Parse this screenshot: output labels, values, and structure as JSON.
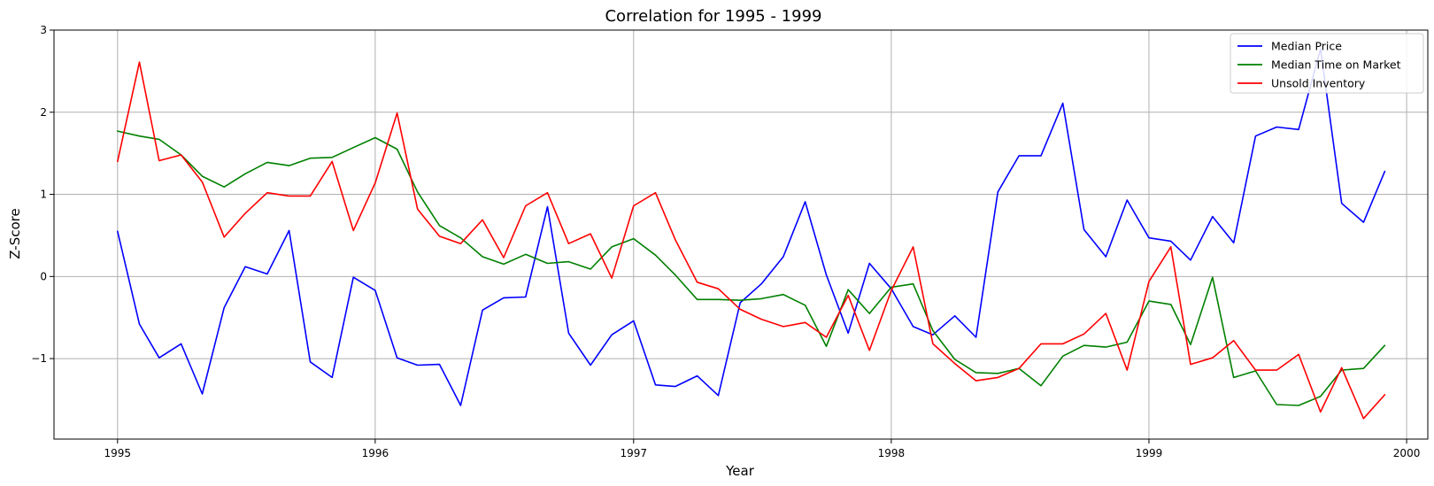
{
  "chart_data": {
    "type": "line",
    "title": "Correlation for 1995 - 1999",
    "xlabel": "Year",
    "ylabel": "Z-Score",
    "xlim": [
      "1994-10-03",
      "2000-01-31"
    ],
    "ylim": [
      -1.98,
      3.0
    ],
    "x_ticks": [
      "1995",
      "1996",
      "1997",
      "1998",
      "1999",
      "2000"
    ],
    "y_ticks": [
      "−1",
      "0",
      "1",
      "2",
      "3"
    ],
    "grid": true,
    "legend_position": "top-right",
    "x": [
      "1995-01",
      "1995-02",
      "1995-03",
      "1995-04",
      "1995-05",
      "1995-06",
      "1995-07",
      "1995-08",
      "1995-09",
      "1995-10",
      "1995-11",
      "1995-12",
      "1996-01",
      "1996-02",
      "1996-03",
      "1996-04",
      "1996-05",
      "1996-06",
      "1996-07",
      "1996-08",
      "1996-09",
      "1996-10",
      "1996-11",
      "1996-12",
      "1997-01",
      "1997-02",
      "1997-03",
      "1997-04",
      "1997-05",
      "1997-06",
      "1997-07",
      "1997-08",
      "1997-09",
      "1997-10",
      "1997-11",
      "1997-12",
      "1998-01",
      "1998-02",
      "1998-03",
      "1998-04",
      "1998-05",
      "1998-06",
      "1998-07",
      "1998-08",
      "1998-09",
      "1998-10",
      "1998-11",
      "1998-12",
      "1999-01",
      "1999-02",
      "1999-03",
      "1999-04",
      "1999-05",
      "1999-06",
      "1999-07",
      "1999-08",
      "1999-09",
      "1999-10",
      "1999-11",
      "1999-12"
    ],
    "series": [
      {
        "name": "Median Price",
        "color": "#0000ff",
        "values": [
          0.55,
          -0.58,
          -0.99,
          -0.82,
          -1.43,
          -0.38,
          0.12,
          0.03,
          0.56,
          -1.04,
          -1.23,
          -0.01,
          -0.17,
          -0.99,
          -1.08,
          -1.07,
          -1.57,
          -0.41,
          -0.26,
          -0.25,
          0.85,
          -0.69,
          -1.08,
          -0.71,
          -0.54,
          -1.32,
          -1.34,
          -1.21,
          -1.45,
          -0.32,
          -0.09,
          0.24,
          0.91,
          0.02,
          -0.69,
          0.16,
          -0.15,
          -0.61,
          -0.71,
          -0.48,
          -0.74,
          1.03,
          1.47,
          1.47,
          2.11,
          0.57,
          0.24,
          0.93,
          0.47,
          0.43,
          0.2,
          0.73,
          0.41,
          1.71,
          1.82,
          1.79,
          2.77,
          0.89,
          0.66,
          1.28
        ]
      },
      {
        "name": "Median Time on Market",
        "color": "#008000",
        "values": [
          1.77,
          1.71,
          1.67,
          1.48,
          1.22,
          1.09,
          1.25,
          1.39,
          1.35,
          1.44,
          1.45,
          1.57,
          1.69,
          1.55,
          1.03,
          0.62,
          0.47,
          0.24,
          0.15,
          0.27,
          0.16,
          0.18,
          0.09,
          0.36,
          0.46,
          0.26,
          0.02,
          -0.28,
          -0.28,
          -0.29,
          -0.27,
          -0.22,
          -0.35,
          -0.85,
          -0.16,
          -0.45,
          -0.13,
          -0.09,
          -0.66,
          -1.01,
          -1.17,
          -1.18,
          -1.12,
          -1.33,
          -0.97,
          -0.84,
          -0.86,
          -0.8,
          -0.3,
          -0.34,
          -0.83,
          -0.01,
          -1.23,
          -1.15,
          -1.56,
          -1.57,
          -1.46,
          -1.14,
          -1.12,
          -0.84
        ]
      },
      {
        "name": "Unsold Inventory",
        "color": "#ff0000",
        "values": [
          1.4,
          2.61,
          1.41,
          1.48,
          1.15,
          0.48,
          0.77,
          1.02,
          0.98,
          0.98,
          1.4,
          0.56,
          1.14,
          1.99,
          0.82,
          0.49,
          0.4,
          0.69,
          0.23,
          0.86,
          1.02,
          0.4,
          0.52,
          -0.02,
          0.86,
          1.02,
          0.45,
          -0.07,
          -0.15,
          -0.4,
          -0.52,
          -0.61,
          -0.56,
          -0.74,
          -0.23,
          -0.9,
          -0.17,
          0.36,
          -0.82,
          -1.06,
          -1.27,
          -1.23,
          -1.12,
          -0.82,
          -0.82,
          -0.7,
          -0.45,
          -1.14,
          -0.06,
          0.36,
          -1.07,
          -0.99,
          -0.78,
          -1.14,
          -1.14,
          -0.95,
          -1.65,
          -1.11,
          -1.73,
          -1.44
        ]
      }
    ]
  }
}
